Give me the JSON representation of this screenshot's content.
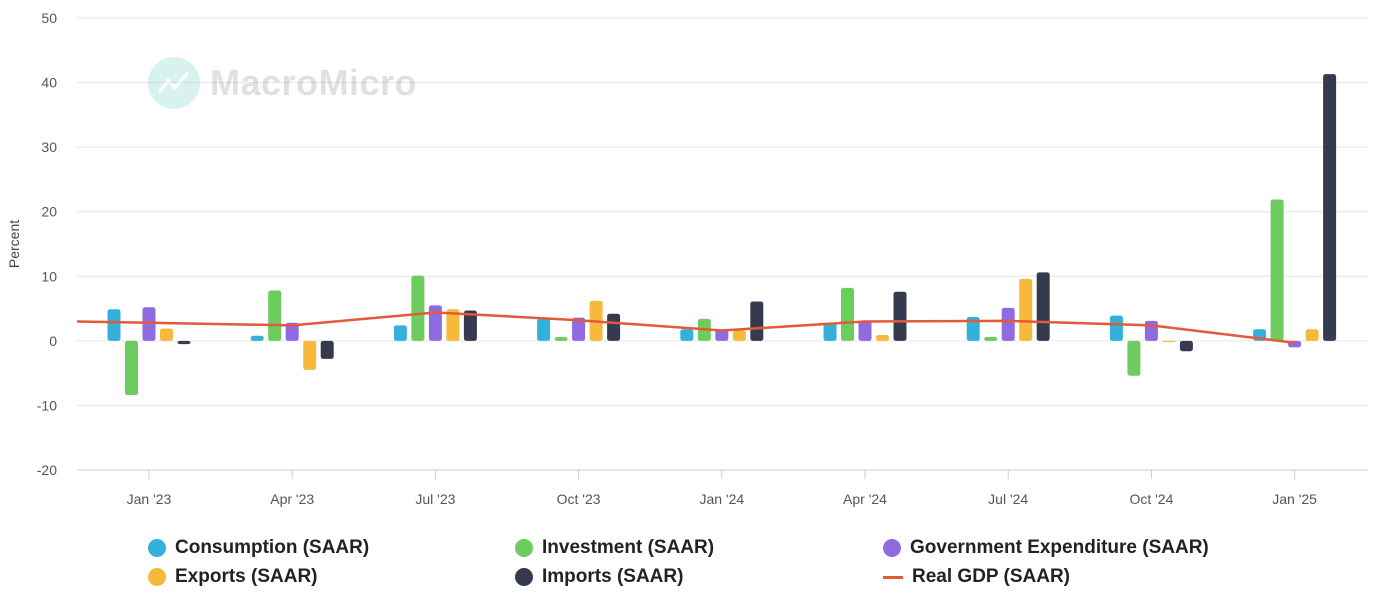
{
  "chart_data": {
    "type": "bar",
    "ylabel": "Percent",
    "ylim": [
      -20,
      50
    ],
    "yticks": [
      50,
      40,
      30,
      20,
      10,
      0,
      -10,
      -20
    ],
    "categories": [
      "Jan '23",
      "Apr '23",
      "Jul '23",
      "Oct '23",
      "Jan '24",
      "Apr '24",
      "Jul '24",
      "Oct '24",
      "Jan '25"
    ],
    "grid": true,
    "legend_position": "bottom",
    "series": [
      {
        "name": "Consumption (SAAR)",
        "type": "bar",
        "color": "#34b0dc",
        "values": [
          4.9,
          0.8,
          2.4,
          3.4,
          1.8,
          2.8,
          3.7,
          3.9,
          1.8
        ]
      },
      {
        "name": "Investment (SAAR)",
        "type": "bar",
        "color": "#6dcc5e",
        "values": [
          -8.4,
          7.8,
          10.1,
          0.6,
          3.4,
          8.2,
          0.6,
          -5.4,
          21.9
        ]
      },
      {
        "name": "Government Expenditure (SAAR)",
        "type": "bar",
        "color": "#8e6be0",
        "values": [
          5.2,
          2.8,
          5.5,
          3.6,
          1.8,
          3.1,
          5.1,
          3.1,
          -1.0
        ]
      },
      {
        "name": "Exports (SAAR)",
        "type": "bar",
        "color": "#f7b93c",
        "values": [
          1.9,
          -4.5,
          4.9,
          6.2,
          1.6,
          0.9,
          9.6,
          -0.2,
          1.8
        ]
      },
      {
        "name": "Imports (SAAR)",
        "type": "bar",
        "color": "#363a4f",
        "values": [
          -0.5,
          -2.8,
          4.7,
          4.2,
          6.1,
          7.6,
          10.6,
          -1.6,
          41.3
        ]
      },
      {
        "name": "Real GDP (SAAR)",
        "type": "line",
        "color": "#e35a3a",
        "values": [
          2.8,
          2.4,
          4.4,
          3.2,
          1.6,
          3.0,
          3.1,
          2.4,
          -0.3
        ]
      }
    ]
  },
  "watermark": {
    "text": "MacroMicro",
    "icon": "chart-line-icon",
    "color": "#17b8a0"
  }
}
